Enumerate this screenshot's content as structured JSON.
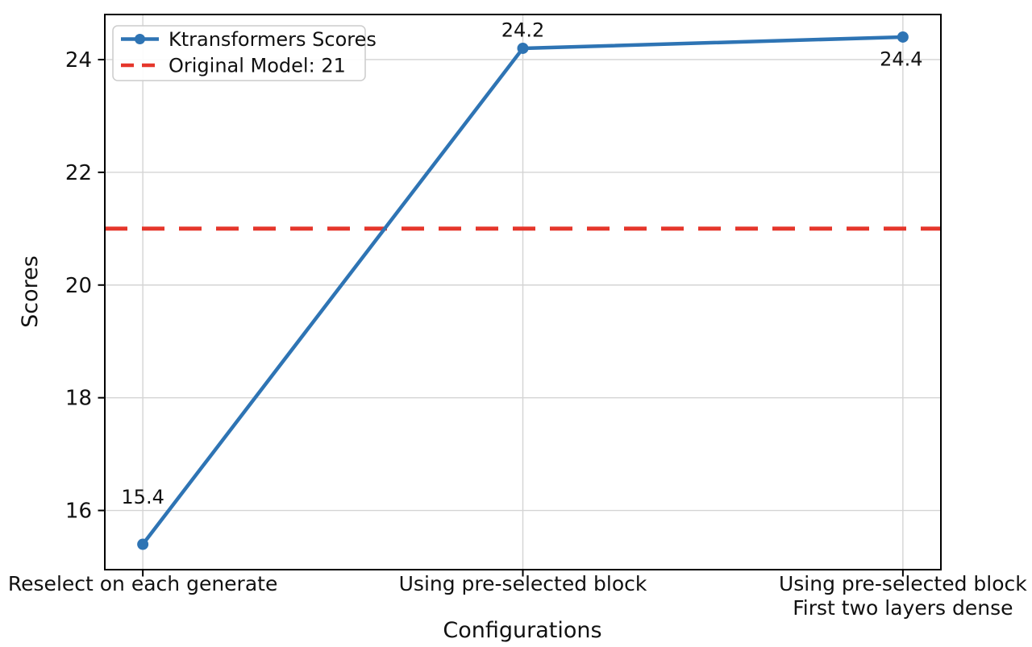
{
  "figure": {
    "background": "#ffffff",
    "text_color": "#111111"
  },
  "chart_data": {
    "type": "line",
    "title": "",
    "xlabel": "Configurations",
    "ylabel": "Scores",
    "categories": [
      "Reselect on each generate",
      "Using pre-selected block",
      "Using pre-selected block\nFirst two layers dense"
    ],
    "series": [
      {
        "name": "Ktransformers Scores",
        "values": [
          15.4,
          24.2,
          24.4
        ],
        "point_labels": [
          "15.4",
          "24.2",
          "24.4"
        ],
        "color": "#2e74b4",
        "marker": "circle",
        "line_style": "solid"
      }
    ],
    "reference_line": {
      "label": "Original Model: 21",
      "value": 21,
      "color": "#e5362b",
      "style": "dashed"
    },
    "yticks": [
      16,
      18,
      20,
      22,
      24
    ],
    "ylim": [
      14.95,
      24.8
    ],
    "xlim": [
      -0.1,
      2.1
    ],
    "grid": true,
    "legend": {
      "position": "upper-left"
    }
  }
}
